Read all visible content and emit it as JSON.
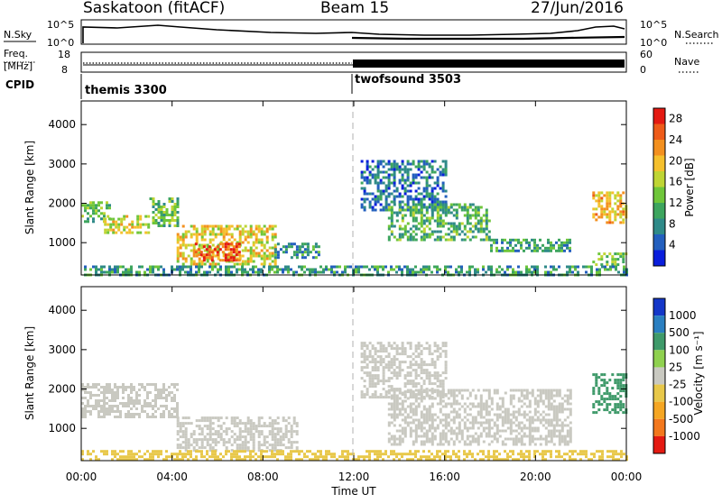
{
  "header": {
    "site": "Saskatoon (fitACF)",
    "beam": "Beam 15",
    "date": "27/Jun/2016"
  },
  "nsky_panel": {
    "left_label": "N.Sky",
    "left_ticks": [
      "10^5",
      "10^0"
    ],
    "right_ticks": [
      "10^5",
      "10^0"
    ],
    "right_label": "N.Search"
  },
  "freq_panel": {
    "left_label_1": "Freq.",
    "left_label_2": "[MHz]",
    "left_ticks": [
      "18",
      "8"
    ],
    "right_ticks": [
      "60",
      "0"
    ],
    "right_label": "Nave"
  },
  "cpid_panel": {
    "label": "CPID",
    "modes": [
      {
        "name": "themis 3300",
        "start_hour": 0
      },
      {
        "name": "twofsound 3503",
        "start_hour": 12
      }
    ]
  },
  "colors": {
    "power": [
      "#0a1edc",
      "#235fbe",
      "#2f8a88",
      "#3da55e",
      "#6fc63a",
      "#bfd534",
      "#f5c02d",
      "#f3901f",
      "#ee5b19",
      "#e41a12"
    ],
    "velocity": [
      "#e41a12",
      "#f3781d",
      "#f5a623",
      "#e8c84a",
      "#c9c9c1",
      "#8fd14f",
      "#3f9a6a",
      "#2a7fc1",
      "#1437c8"
    ]
  },
  "chart_data": [
    {
      "type": "heatmap",
      "panel": "power",
      "ylabel": "Slant Range [km]",
      "xlabel": "Time UT",
      "x_ticks": [
        "00:00",
        "04:00",
        "08:00",
        "12:00",
        "16:00",
        "20:00",
        "00:00"
      ],
      "xlim_hours": [
        0,
        24
      ],
      "y_ticks": [
        "1000",
        "2000",
        "3000",
        "4000"
      ],
      "ylim_km": [
        180,
        4600
      ],
      "colorbar_label": "Power [dB]",
      "colorbar_ticks": [
        "4",
        "8",
        "12",
        "16",
        "20",
        "24",
        "28"
      ],
      "colorbar_range": [
        0,
        30
      ],
      "regions": [
        {
          "t": [
            0.0,
            1.2
          ],
          "r": [
            1550,
            2050
          ],
          "v": 12
        },
        {
          "t": [
            1.0,
            3.0
          ],
          "r": [
            1250,
            1700
          ],
          "v": 17
        },
        {
          "t": [
            3.0,
            4.2
          ],
          "r": [
            1450,
            2150
          ],
          "v": 13
        },
        {
          "t": [
            4.2,
            8.5
          ],
          "r": [
            450,
            1450
          ],
          "v": 18
        },
        {
          "t": [
            5.0,
            7.0
          ],
          "r": [
            550,
            1000
          ],
          "v": 26
        },
        {
          "t": [
            8.5,
            10.5
          ],
          "r": [
            600,
            1000
          ],
          "v": 8
        },
        {
          "t": [
            12.3,
            16.0
          ],
          "r": [
            1800,
            3100
          ],
          "v": 6
        },
        {
          "t": [
            13.5,
            18.0
          ],
          "r": [
            1100,
            2000
          ],
          "v": 11
        },
        {
          "t": [
            18.0,
            21.5
          ],
          "r": [
            800,
            1100
          ],
          "v": 9
        },
        {
          "t": [
            22.5,
            24.0
          ],
          "r": [
            1500,
            2300
          ],
          "v": 20
        },
        {
          "t": [
            22.5,
            24.0
          ],
          "r": [
            450,
            750
          ],
          "v": 14
        },
        {
          "t": [
            0.0,
            24.0
          ],
          "r": [
            180,
            420
          ],
          "v": 9
        }
      ]
    },
    {
      "type": "heatmap",
      "panel": "velocity",
      "ylabel": "Slant Range [km]",
      "xlabel": "Time UT",
      "x_ticks": [
        "00:00",
        "04:00",
        "08:00",
        "12:00",
        "16:00",
        "20:00",
        "00:00"
      ],
      "xlim_hours": [
        0,
        24
      ],
      "y_ticks": [
        "1000",
        "2000",
        "3000",
        "4000"
      ],
      "ylim_km": [
        180,
        4600
      ],
      "colorbar_label": "Velocity [m s⁻¹]",
      "colorbar_ticks": [
        "1000",
        "500",
        "100",
        "25",
        "-25",
        "-100",
        "-500",
        "-1000"
      ],
      "regions": [
        {
          "t": [
            0.0,
            4.2
          ],
          "r": [
            1300,
            2150
          ],
          "v": 0
        },
        {
          "t": [
            4.2,
            9.5
          ],
          "r": [
            450,
            1300
          ],
          "v": 0
        },
        {
          "t": [
            12.3,
            16.0
          ],
          "r": [
            1800,
            3200
          ],
          "v": 0
        },
        {
          "t": [
            13.5,
            21.5
          ],
          "r": [
            600,
            2000
          ],
          "v": 0
        },
        {
          "t": [
            22.5,
            24.0
          ],
          "r": [
            1400,
            2400
          ],
          "v": 150
        },
        {
          "t": [
            0.0,
            24.0
          ],
          "r": [
            180,
            450
          ],
          "v": -80
        }
      ]
    }
  ]
}
